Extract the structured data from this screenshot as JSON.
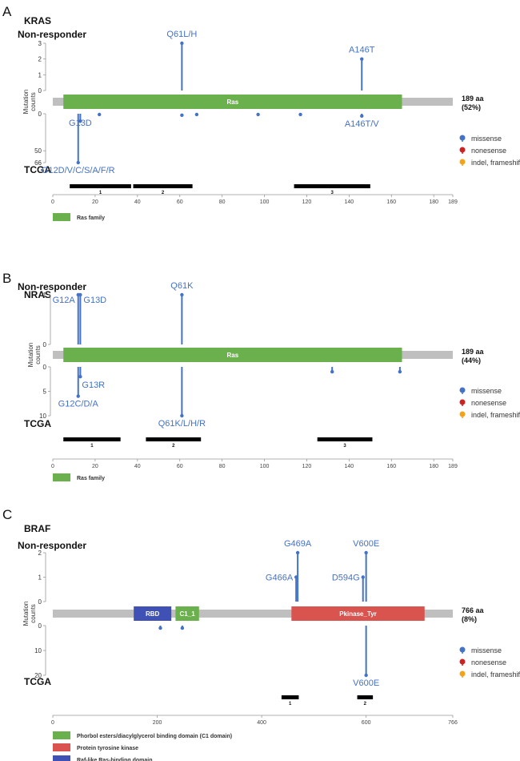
{
  "colors": {
    "missense": "#4472c4",
    "nonsense": "#cc2222",
    "frameshift": "#f2a31a",
    "backbone": "#bfbfbf",
    "ras": "#6ab04c",
    "pkinase": "#d9534f",
    "rbd": "#3f51b5",
    "c1": "#6ab04c",
    "region": "#000000"
  },
  "legend": {
    "missense": "missense",
    "nonsense": "nonesense",
    "frameshift": "indel, frameshift"
  },
  "axis_title": [
    "Mutation",
    "counts"
  ],
  "chart_data": [
    {
      "type": "lollipop",
      "panel": "A",
      "gene": "KRAS",
      "top_label": "Non-responder",
      "bottom_label": "TCGA",
      "length": 189,
      "length_label": "189 aa",
      "coverage_label": "(52%)",
      "top_ticks": [
        0,
        1,
        2,
        3
      ],
      "top_max": 3,
      "bottom_ticks": [
        0,
        50,
        66
      ],
      "bottom_max": 66,
      "x_ticks": [
        0,
        20,
        40,
        60,
        80,
        100,
        120,
        140,
        160,
        180,
        189
      ],
      "domains": [
        {
          "name": "Ras",
          "start": 5,
          "end": 165,
          "color_key": "ras"
        }
      ],
      "domain_legend": [
        {
          "label": "Ras family",
          "color_key": "ras"
        }
      ],
      "regions": [
        {
          "label": "1",
          "start": 8,
          "end": 37
        },
        {
          "label": "2",
          "start": 38,
          "end": 66
        },
        {
          "label": "3",
          "start": 114,
          "end": 150
        }
      ],
      "top_mutations": [
        {
          "pos": 61,
          "count": 3,
          "label": "Q61L/H"
        },
        {
          "pos": 146,
          "count": 2,
          "label": "A146T"
        }
      ],
      "bottom_mutations": [
        {
          "pos": 12,
          "count": 66,
          "label": "G12D/V/C/S/A/F/R"
        },
        {
          "pos": 13,
          "count": 10,
          "label": "G13D"
        },
        {
          "pos": 61,
          "count": 2,
          "label": ""
        },
        {
          "pos": 146,
          "count": 3,
          "label": "A146T/V"
        },
        {
          "pos": 22,
          "count": 1,
          "label": ""
        },
        {
          "pos": 68,
          "count": 1,
          "label": ""
        },
        {
          "pos": 117,
          "count": 1,
          "label": ""
        },
        {
          "pos": 97,
          "count": 1,
          "label": ""
        }
      ]
    },
    {
      "type": "lollipop",
      "panel": "B",
      "gene": "NRAS",
      "top_label": "Non-responder",
      "bottom_label": "TCGA",
      "length": 189,
      "length_label": "189 aa",
      "coverage_label": "(44%)",
      "top_ticks": [
        0,
        1
      ],
      "top_max": 1,
      "bottom_ticks": [
        0,
        5,
        10
      ],
      "bottom_max": 10,
      "x_ticks": [
        0,
        20,
        40,
        60,
        80,
        100,
        120,
        140,
        160,
        180,
        189
      ],
      "domains": [
        {
          "name": "Ras",
          "start": 5,
          "end": 165,
          "color_key": "ras"
        }
      ],
      "domain_legend": [
        {
          "label": "Ras family",
          "color_key": "ras"
        }
      ],
      "regions": [
        {
          "label": "1",
          "start": 5,
          "end": 32
        },
        {
          "label": "2",
          "start": 44,
          "end": 70
        },
        {
          "label": "3",
          "start": 125,
          "end": 151
        }
      ],
      "top_mutations": [
        {
          "pos": 12,
          "count": 1,
          "label": "G12A"
        },
        {
          "pos": 13,
          "count": 1,
          "label": "G13D"
        },
        {
          "pos": 61,
          "count": 1,
          "label": "Q61K"
        }
      ],
      "bottom_mutations": [
        {
          "pos": 12,
          "count": 6,
          "label": "G12C/D/A"
        },
        {
          "pos": 13,
          "count": 2,
          "label": "G13R"
        },
        {
          "pos": 61,
          "count": 10,
          "label": "Q61K/L/H/R"
        },
        {
          "pos": 132,
          "count": 1,
          "label": ""
        },
        {
          "pos": 164,
          "count": 1,
          "label": ""
        }
      ]
    },
    {
      "type": "lollipop",
      "panel": "C",
      "gene": "BRAF",
      "top_label": "Non-responder",
      "bottom_label": "TCGA",
      "length": 766,
      "length_label": "766 aa",
      "coverage_label": "(8%)",
      "top_ticks": [
        0,
        1,
        2
      ],
      "top_max": 2,
      "bottom_ticks": [
        0,
        10,
        20
      ],
      "bottom_max": 20,
      "x_ticks": [
        0,
        200,
        400,
        600,
        766
      ],
      "domains": [
        {
          "name": "RBD",
          "start": 155,
          "end": 227,
          "color_key": "rbd"
        },
        {
          "name": "C1_1",
          "start": 235,
          "end": 280,
          "color_key": "c1"
        },
        {
          "name": "Pkinase_Tyr",
          "start": 457,
          "end": 712,
          "color_key": "pkinase"
        }
      ],
      "domain_legend": [
        {
          "label": "Phorbol esters/diacylglycerol binding domain (C1 domain)",
          "color_key": "c1"
        },
        {
          "label": "Protein tyrosine kinase",
          "color_key": "pkinase"
        },
        {
          "label": "Raf-like Ras-binding domain",
          "color_key": "rbd"
        }
      ],
      "regions": [
        {
          "label": "1",
          "start": 438,
          "end": 471
        },
        {
          "label": "2",
          "start": 583,
          "end": 613
        }
      ],
      "top_mutations": [
        {
          "pos": 466,
          "count": 1,
          "label": "G466A"
        },
        {
          "pos": 469,
          "count": 2,
          "label": "G469A"
        },
        {
          "pos": 594,
          "count": 1,
          "label": "D594G"
        },
        {
          "pos": 600,
          "count": 2,
          "label": "V600E"
        }
      ],
      "bottom_mutations": [
        {
          "pos": 600,
          "count": 20,
          "label": "V600E"
        },
        {
          "pos": 206,
          "count": 1,
          "label": ""
        },
        {
          "pos": 248,
          "count": 1,
          "label": ""
        }
      ]
    }
  ]
}
